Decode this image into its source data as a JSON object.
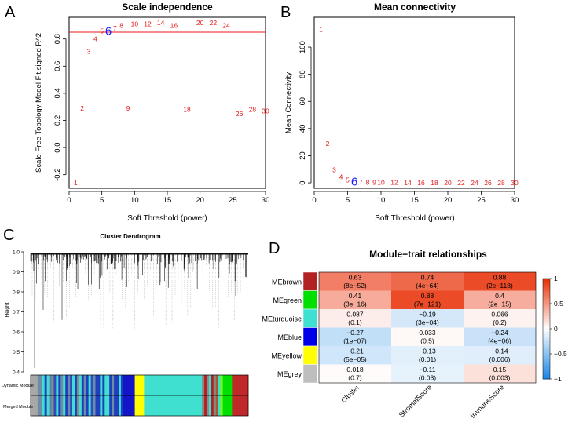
{
  "chart_data": [
    {
      "panel_letter": "A",
      "type": "scatter",
      "title": "Scale independence",
      "xlabel": "Soft Threshold (power)",
      "ylabel": "Scale Free Topology Model Fit,signed R^2",
      "xlim": [
        0,
        30
      ],
      "ylim": [
        -0.3,
        0.96
      ],
      "xticks": [
        "0",
        "5",
        "10",
        "15",
        "20",
        "25",
        "30"
      ],
      "yticks": [
        "-0.2",
        "0.0",
        "0.2",
        "0.4",
        "0.6",
        "0.8"
      ],
      "hline": 0.85,
      "highlight_power": 6,
      "point_color": "#e41a1c",
      "highlight_color": "#1a1aff",
      "line_color": "#e41a1c",
      "points": [
        {
          "x": 1,
          "y": -0.26,
          "label": "1"
        },
        {
          "x": 2,
          "y": 0.29,
          "label": "2"
        },
        {
          "x": 3,
          "y": 0.71,
          "label": "3"
        },
        {
          "x": 4,
          "y": 0.8,
          "label": "4"
        },
        {
          "x": 5,
          "y": 0.86,
          "label": "5"
        },
        {
          "x": 6,
          "y": 0.86,
          "label": "6"
        },
        {
          "x": 7,
          "y": 0.88,
          "label": "7"
        },
        {
          "x": 8,
          "y": 0.9,
          "label": "8"
        },
        {
          "x": 9,
          "y": 0.29,
          "label": "9"
        },
        {
          "x": 10,
          "y": 0.91,
          "label": "10"
        },
        {
          "x": 12,
          "y": 0.91,
          "label": "12"
        },
        {
          "x": 14,
          "y": 0.92,
          "label": "14"
        },
        {
          "x": 16,
          "y": 0.9,
          "label": "16"
        },
        {
          "x": 18,
          "y": 0.28,
          "label": "18"
        },
        {
          "x": 20,
          "y": 0.92,
          "label": "20"
        },
        {
          "x": 22,
          "y": 0.92,
          "label": "22"
        },
        {
          "x": 24,
          "y": 0.9,
          "label": "24"
        },
        {
          "x": 26,
          "y": 0.25,
          "label": "26"
        },
        {
          "x": 28,
          "y": 0.28,
          "label": "28"
        },
        {
          "x": 30,
          "y": 0.27,
          "label": "30"
        }
      ]
    },
    {
      "panel_letter": "B",
      "type": "scatter",
      "title": "Mean connectivity",
      "xlabel": "Soft Threshold (power)",
      "ylabel": "Mean Connectivity",
      "xlim": [
        0,
        30
      ],
      "ylim": [
        -4,
        122
      ],
      "xticks": [
        "0",
        "5",
        "10",
        "15",
        "20",
        "25",
        "30"
      ],
      "yticks": [
        "0",
        "20",
        "40",
        "60",
        "80",
        "100"
      ],
      "highlight_power": 6,
      "point_color": "#e41a1c",
      "highlight_color": "#1a1aff",
      "points": [
        {
          "x": 1,
          "y": 113,
          "label": "1"
        },
        {
          "x": 2,
          "y": 29,
          "label": "2"
        },
        {
          "x": 3,
          "y": 9.5,
          "label": "3"
        },
        {
          "x": 4,
          "y": 4.5,
          "label": "4"
        },
        {
          "x": 5,
          "y": 2.2,
          "label": "5"
        },
        {
          "x": 6,
          "y": 0.8,
          "label": "6"
        },
        {
          "x": 7,
          "y": 0.6,
          "label": "7"
        },
        {
          "x": 8,
          "y": 0.4,
          "label": "8"
        },
        {
          "x": 9,
          "y": 0.3,
          "label": "9"
        },
        {
          "x": 10,
          "y": 0.2,
          "label": "10"
        },
        {
          "x": 12,
          "y": 0.2,
          "label": "12"
        },
        {
          "x": 14,
          "y": 0.1,
          "label": "14"
        },
        {
          "x": 16,
          "y": 0.1,
          "label": "16"
        },
        {
          "x": 18,
          "y": 0.1,
          "label": "18"
        },
        {
          "x": 20,
          "y": 0.1,
          "label": "20"
        },
        {
          "x": 22,
          "y": 0.1,
          "label": "22"
        },
        {
          "x": 24,
          "y": 0.1,
          "label": "24"
        },
        {
          "x": 26,
          "y": 0.1,
          "label": "26"
        },
        {
          "x": 28,
          "y": 0.1,
          "label": "28"
        },
        {
          "x": 30,
          "y": 0.1,
          "label": "30"
        }
      ]
    },
    {
      "panel_letter": "C",
      "type": "dendrogram",
      "title": "Cluster Dendrogram",
      "ylabel": "Height",
      "ylim": [
        0.4,
        1.0
      ],
      "yticks": [
        "0.4",
        "0.5",
        "0.6",
        "0.7",
        "0.8",
        "0.9",
        "1.0"
      ],
      "row_labels": [
        "Dynamic Module",
        "Merged Module"
      ],
      "module_bar": [
        {
          "color": "#a8a8a8",
          "weight": 3
        },
        {
          "color": "#6e8ca8",
          "weight": 2
        },
        {
          "color": "#40e0d0",
          "weight": 1
        },
        {
          "color": "#1f3fbf",
          "weight": 1
        },
        {
          "color": "#40e0d0",
          "weight": 1
        },
        {
          "color": "#5a7fb0",
          "weight": 1
        },
        {
          "color": "#8a8a8a",
          "weight": 1
        },
        {
          "color": "#2b4fbf",
          "weight": 1
        },
        {
          "color": "#40e0d0",
          "weight": 1
        },
        {
          "color": "#1f3fbf",
          "weight": 1
        },
        {
          "color": "#6e8ca8",
          "weight": 1
        },
        {
          "color": "#40e0d0",
          "weight": 1
        },
        {
          "color": "#1f3fbf",
          "weight": 1
        },
        {
          "color": "#6e8ca8",
          "weight": 1
        },
        {
          "color": "#2b4fbf",
          "weight": 1
        },
        {
          "color": "#40e0d0",
          "weight": 1
        },
        {
          "color": "#1f3fbf",
          "weight": 1
        },
        {
          "color": "#8a8a8a",
          "weight": 1
        },
        {
          "color": "#40e0d0",
          "weight": 1
        },
        {
          "color": "#1f3fbf",
          "weight": 1
        },
        {
          "color": "#6e8ca8",
          "weight": 1
        },
        {
          "color": "#1f3fbf",
          "weight": 1
        },
        {
          "color": "#40e0d0",
          "weight": 1
        },
        {
          "color": "#2b4fbf",
          "weight": 1
        },
        {
          "color": "#6e8ca8",
          "weight": 1
        },
        {
          "color": "#1f3fbf",
          "weight": 2
        },
        {
          "color": "#40e0d0",
          "weight": 1
        },
        {
          "color": "#1f3fbf",
          "weight": 1
        },
        {
          "color": "#40e0d0",
          "weight": 2
        },
        {
          "color": "#1f3fbf",
          "weight": 1
        },
        {
          "color": "#6e8ca8",
          "weight": 1
        },
        {
          "color": "#1f3fbf",
          "weight": 2
        },
        {
          "color": "#40e0d0",
          "weight": 1
        },
        {
          "color": "#1f3fbf",
          "weight": 1
        },
        {
          "color": "#1414c8",
          "weight": 5
        },
        {
          "color": "#ffff00",
          "weight": 4
        },
        {
          "color": "#40e0d0",
          "weight": 25
        },
        {
          "color": "#8a8a8a",
          "weight": 1
        },
        {
          "color": "#b22222",
          "weight": 1
        },
        {
          "color": "#8a8a8a",
          "weight": 1
        },
        {
          "color": "#40e0d0",
          "weight": 1
        },
        {
          "color": "#b22222",
          "weight": 1
        },
        {
          "color": "#8a8a8a",
          "weight": 1
        },
        {
          "color": "#a05a2c",
          "weight": 1
        },
        {
          "color": "#40e0d0",
          "weight": 1
        },
        {
          "color": "#7cfc00",
          "weight": 1
        },
        {
          "color": "#00e000",
          "weight": 4
        },
        {
          "color": "#c0282a",
          "weight": 7
        }
      ]
    },
    {
      "panel_letter": "D",
      "type": "heatmap",
      "title": "Module−trait relationships",
      "columns": [
        "Cluster",
        "StromalScore",
        "ImmuneScore"
      ],
      "rows": [
        {
          "module": "MEbrown",
          "color": "#b22222",
          "cells": [
            {
              "value": 0.63,
              "text": "0.63",
              "p": "(8e−52)"
            },
            {
              "value": 0.74,
              "text": "0.74",
              "p": "(4e−64)"
            },
            {
              "value": 0.88,
              "text": "0.88",
              "p": "(2e−118)"
            }
          ]
        },
        {
          "module": "MEgreen",
          "color": "#00e000",
          "cells": [
            {
              "value": 0.41,
              "text": "0.41",
              "p": "(3e−16)"
            },
            {
              "value": 0.88,
              "text": "0.88",
              "p": "(7e−121)"
            },
            {
              "value": 0.4,
              "text": "0.4",
              "p": "(2e−15)"
            }
          ]
        },
        {
          "module": "MEturquoise",
          "color": "#40e0d0",
          "cells": [
            {
              "value": 0.087,
              "text": "0.087",
              "p": "(0.1)"
            },
            {
              "value": -0.19,
              "text": "−0.19",
              "p": "(3e−04)"
            },
            {
              "value": 0.066,
              "text": "0.066",
              "p": "(0.2)"
            }
          ]
        },
        {
          "module": "MEblue",
          "color": "#0000e8",
          "cells": [
            {
              "value": -0.27,
              "text": "−0.27",
              "p": "(1e−07)"
            },
            {
              "value": 0.033,
              "text": "0.033",
              "p": "(0.5)"
            },
            {
              "value": -0.24,
              "text": "−0.24",
              "p": "(4e−06)"
            }
          ]
        },
        {
          "module": "MEyellow",
          "color": "#ffff00",
          "cells": [
            {
              "value": -0.21,
              "text": "−0.21",
              "p": "(5e−05)"
            },
            {
              "value": -0.13,
              "text": "−0.13",
              "p": "(0.01)"
            },
            {
              "value": -0.14,
              "text": "−0.14",
              "p": "(0.006)"
            }
          ]
        },
        {
          "module": "MEgrey",
          "color": "#bebebe",
          "cells": [
            {
              "value": 0.018,
              "text": "0.018",
              "p": "(0.7)"
            },
            {
              "value": -0.11,
              "text": "−0.11",
              "p": "(0.03)"
            },
            {
              "value": 0.15,
              "text": "0.15",
              "p": "(0.003)"
            }
          ]
        }
      ],
      "legend_ticks": [
        {
          "value": 1,
          "label": "1"
        },
        {
          "value": 0.5,
          "label": "0.5"
        },
        {
          "value": 0,
          "label": "0"
        },
        {
          "value": -0.5,
          "label": "−0.5"
        },
        {
          "value": -1,
          "label": "−1"
        }
      ],
      "colormap": {
        "low": "#1e88e5",
        "mid": "#ffffff",
        "high": "#e8330a"
      }
    }
  ]
}
